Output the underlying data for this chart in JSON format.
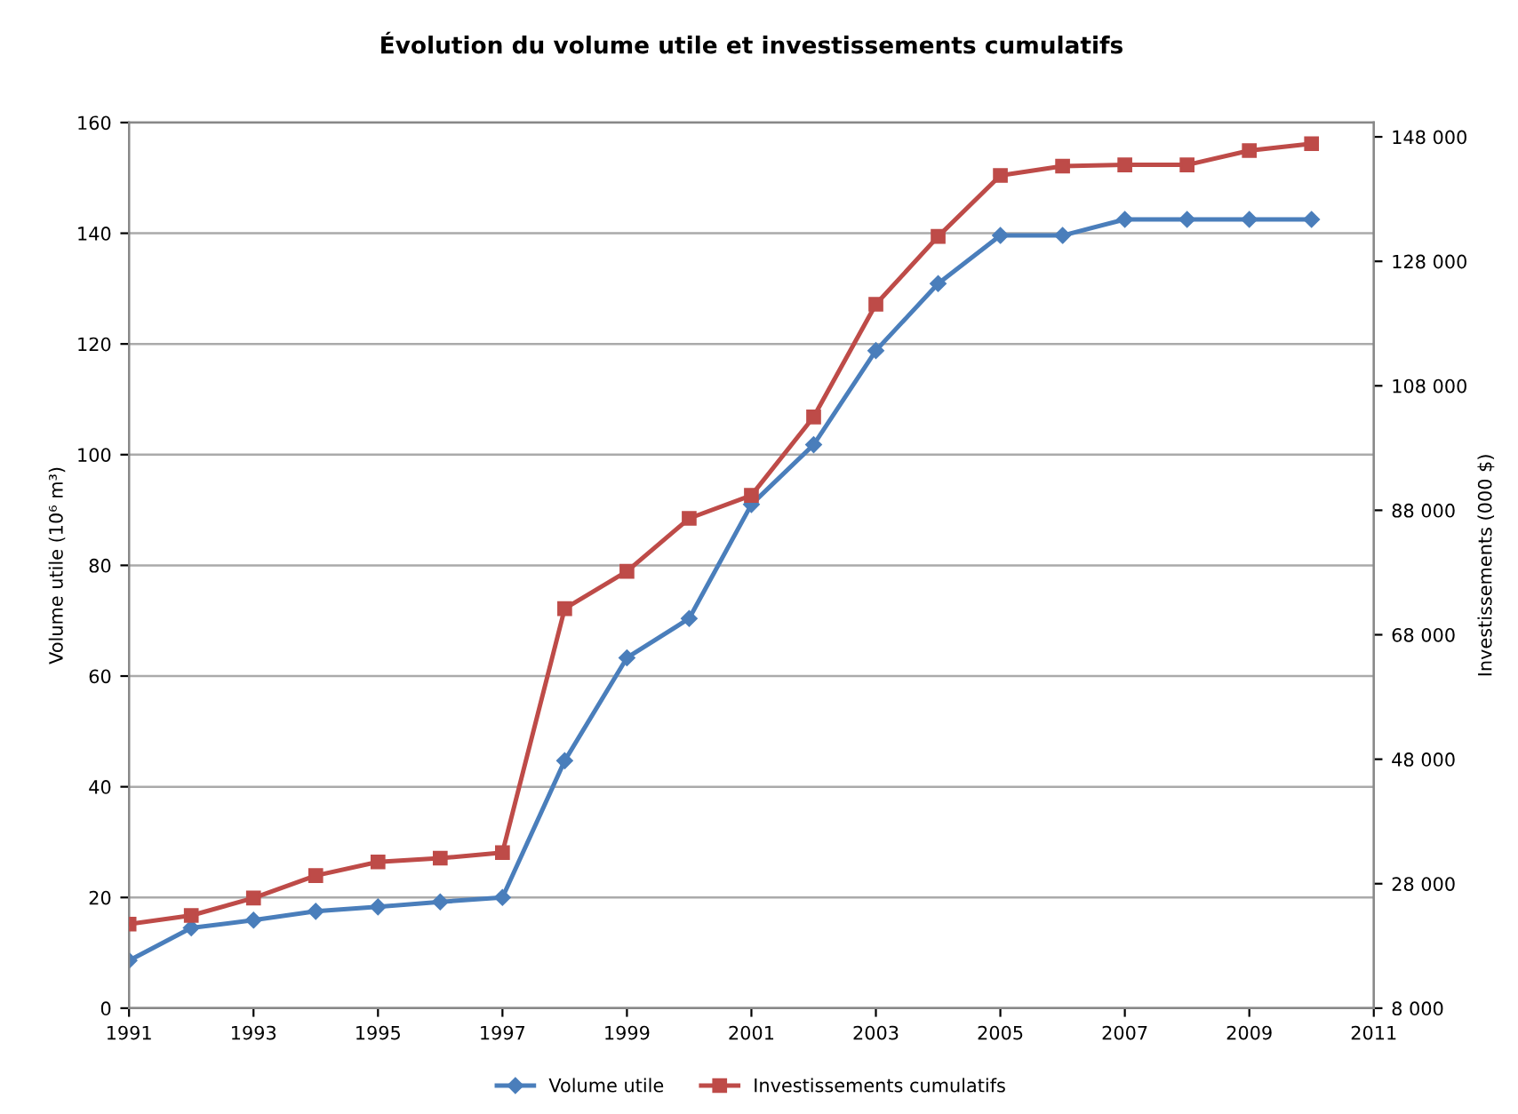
{
  "chart_data": {
    "type": "line",
    "title": "Évolution du volume utile et investissements cumulatifs",
    "ylabel": "Volume utile (10⁶ m³)",
    "y2label": "Investissements (000 $)",
    "x": [
      1991,
      1992,
      1993,
      1994,
      1995,
      1996,
      1997,
      1998,
      1999,
      2000,
      2001,
      2002,
      2003,
      2004,
      2005,
      2006,
      2007,
      2008,
      2009,
      2010
    ],
    "series": [
      {
        "name": "Volume utile",
        "color": "#4a7ebb",
        "marker": "diamond",
        "values": [
          8.6,
          14.5,
          15.9,
          17.5,
          18.3,
          19.2,
          20,
          44.7,
          63.3,
          70.4,
          91,
          101.8,
          118.8,
          130.9,
          139.6,
          139.6,
          142.5,
          142.5,
          142.5,
          142.5
        ]
      },
      {
        "name": "Investissements cumulatifs",
        "color": "#be4b48",
        "marker": "square",
        "axis": "y2",
        "values": [
          21500,
          22900,
          25700,
          29300,
          31500,
          32100,
          33000,
          72200,
          78200,
          86700,
          90400,
          103000,
          121100,
          132000,
          141800,
          143300,
          143500,
          143500,
          145800,
          146900
        ]
      }
    ],
    "xlim": [
      1991,
      2011
    ],
    "xticks": [
      1991,
      1993,
      1995,
      1997,
      1999,
      2001,
      2003,
      2005,
      2007,
      2009,
      2011
    ],
    "ylim": [
      0,
      160
    ],
    "yticks": [
      0,
      20,
      40,
      60,
      80,
      100,
      120,
      140,
      160
    ],
    "y2lim": [
      8000,
      150300
    ],
    "y2ticks": [
      {
        "value": 8000,
        "label": "8 000"
      },
      {
        "value": 28000,
        "label": "28 000"
      },
      {
        "value": 48000,
        "label": "48 000"
      },
      {
        "value": 68000,
        "label": "68 000"
      },
      {
        "value": 88000,
        "label": "88 000"
      },
      {
        "value": 108000,
        "label": "108 000"
      },
      {
        "value": 128000,
        "label": "128 000"
      },
      {
        "value": 148000,
        "label": "148 000"
      }
    ],
    "grid": "y",
    "legend": "bottom",
    "line_style": "solid"
  }
}
